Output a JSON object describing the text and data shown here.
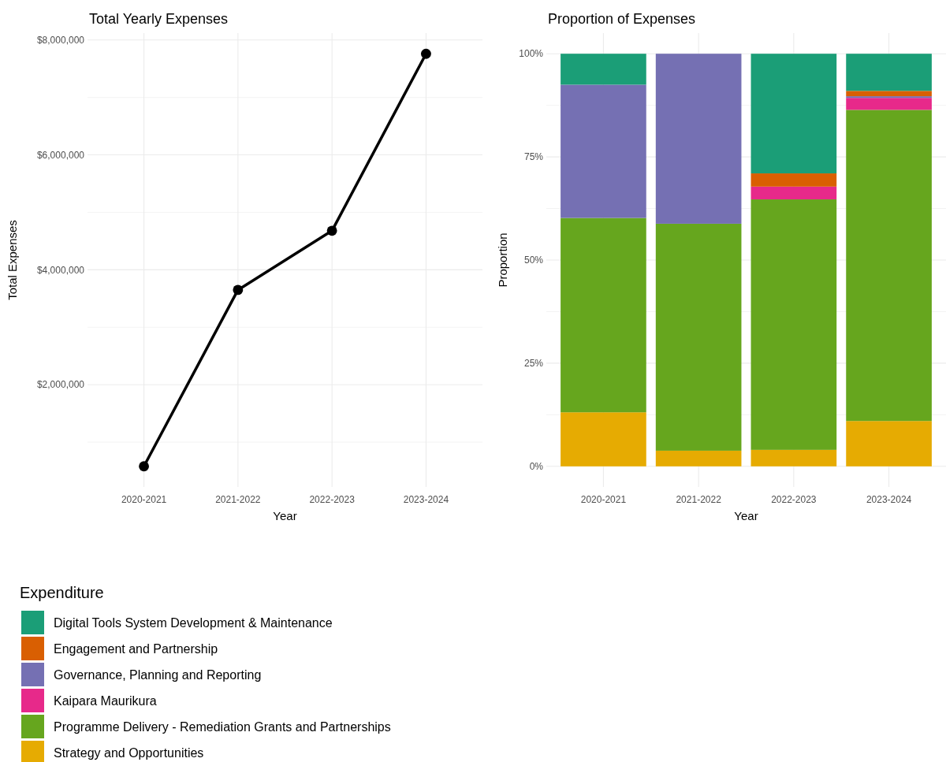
{
  "chart_data": [
    {
      "type": "line",
      "title": "Total Yearly Expenses",
      "xlabel": "Year",
      "ylabel": "Total Expenses",
      "categories": [
        "2020-2021",
        "2021-2022",
        "2022-2023",
        "2023-2024"
      ],
      "series": [
        {
          "color": "#000000",
          "values": [
            580000,
            3650000,
            4680000,
            7760000
          ]
        }
      ],
      "ylim": [
        220000,
        8120000
      ],
      "yticks": [
        {
          "value": 1000000,
          "label": null
        },
        {
          "value": 2000000,
          "label": "$2,000,000"
        },
        {
          "value": 3000000,
          "label": null
        },
        {
          "value": 4000000,
          "label": "$4,000,000"
        },
        {
          "value": 5000000,
          "label": null
        },
        {
          "value": 6000000,
          "label": "$6,000,000"
        },
        {
          "value": 7000000,
          "label": null
        },
        {
          "value": 8000000,
          "label": "$8,000,000"
        }
      ],
      "grid": true,
      "marker": "circle",
      "line_style": "solid"
    },
    {
      "type": "bar",
      "stacked": true,
      "title": "Proportion of Expenses",
      "xlabel": "Year",
      "ylabel": "Proportion",
      "legend_title": "Expenditure",
      "legend": "bottom",
      "categories": [
        "2020-2021",
        "2021-2022",
        "2022-2023",
        "2023-2024"
      ],
      "series": [
        {
          "name": "Strategy and Opportunities",
          "color": "#e6ab02",
          "values": [
            13.1,
            3.8,
            4.0,
            11.0
          ]
        },
        {
          "name": "Programme Delivery - Remediation Grants and Partnerships",
          "color": "#66a61e",
          "values": [
            47.1,
            55.0,
            60.7,
            75.4
          ]
        },
        {
          "name": "Kaipara Maurikura",
          "color": "#e7298a",
          "values": [
            0,
            0,
            3.1,
            2.9
          ]
        },
        {
          "name": "Governance, Planning and Reporting",
          "color": "#7570b3",
          "values": [
            32.3,
            41.2,
            0,
            0.4
          ]
        },
        {
          "name": "Engagement and Partnership",
          "color": "#d95f02",
          "values": [
            0,
            0,
            3.2,
            1.3
          ]
        },
        {
          "name": "Digital Tools System Development & Maintenance",
          "color": "#1b9e77",
          "values": [
            7.5,
            0,
            29.0,
            9.0
          ]
        }
      ],
      "ylim": [
        -5,
        105
      ],
      "yticks": [
        {
          "value": 0,
          "label": "0%"
        },
        {
          "value": 12.5,
          "label": null
        },
        {
          "value": 25,
          "label": "25%"
        },
        {
          "value": 37.5,
          "label": null
        },
        {
          "value": 50,
          "label": "50%"
        },
        {
          "value": 62.5,
          "label": null
        },
        {
          "value": 75,
          "label": "75%"
        },
        {
          "value": 87.5,
          "label": null
        },
        {
          "value": 100,
          "label": "100%"
        }
      ],
      "grid": true
    }
  ]
}
